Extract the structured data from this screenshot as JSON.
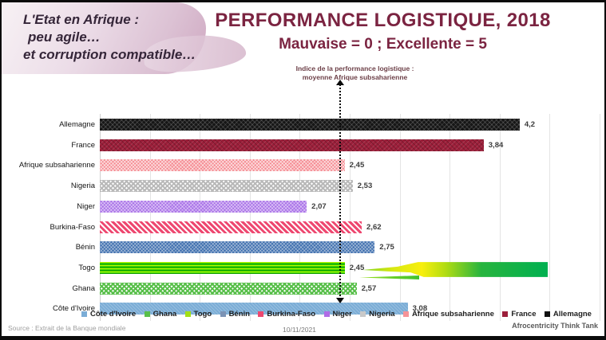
{
  "header": {
    "tagline_lines": [
      "L'Etat en Afrique :",
      "peu agile…",
      "et corruption compatible…"
    ],
    "title": "PERFORMANCE LOGISTIQUE, 2018",
    "subtitle": "Mauvaise = 0 ; Excellente = 5"
  },
  "annotation": {
    "line1": "Indice de la performance logistique :",
    "line2": "moyenne Afrique subsaharienne"
  },
  "colors": {
    "title": "#7b2441",
    "tagline_text": "#352639",
    "brush_pink": "#cfa9c2",
    "highlight_arrow_green": "#00b050",
    "highlight_arrow_yellow": "#f8ef0e",
    "reference_line": "#0a0a0a"
  },
  "chart_data": {
    "type": "bar",
    "orientation": "horizontal",
    "title": "PERFORMANCE LOGISTIQUE, 2018",
    "subtitle": "Mauvaise = 0 ; Excellente = 5",
    "xlabel": "",
    "ylabel": "",
    "xlim": [
      0,
      5
    ],
    "gridline_step": 0.5,
    "grid": true,
    "bars": [
      {
        "label": "Allemagne",
        "value": 4.2,
        "value_label": "4,2",
        "color": "#161616",
        "pattern": "black"
      },
      {
        "label": "France",
        "value": 3.84,
        "value_label": "3,84",
        "color": "#9c1f3a",
        "pattern": "darkred"
      },
      {
        "label": "Afrique subsaharienne",
        "value": 2.45,
        "value_label": "2,45",
        "color": "#f58b92",
        "pattern": "salmon"
      },
      {
        "label": "Nigeria",
        "value": 2.53,
        "value_label": "2,53",
        "color": "#bdbdbd",
        "pattern": "gray"
      },
      {
        "label": "Niger",
        "value": 2.07,
        "value_label": "2,07",
        "color": "#a971e8",
        "pattern": "purple"
      },
      {
        "label": "Burkina-Faso",
        "value": 2.62,
        "value_label": "2,62",
        "color": "#ee4870",
        "pattern": "pinkstripe"
      },
      {
        "label": "Bénin",
        "value": 2.75,
        "value_label": "2,75",
        "color": "#3f6fae",
        "pattern": "blue"
      },
      {
        "label": "Togo",
        "value": 2.45,
        "value_label": "2,45",
        "color": "#2ed300",
        "pattern": "greenh"
      },
      {
        "label": "Ghana",
        "value": 2.57,
        "value_label": "2,57",
        "color": "#58bf4a",
        "pattern": "greenx"
      },
      {
        "label": "Côte d'Ivoire",
        "value": 3.08,
        "value_label": "3,08",
        "color": "#7badd6",
        "pattern": "lightblue"
      }
    ],
    "reference_line": {
      "value": 2.45,
      "label": "Indice de la performance logistique : moyenne Afrique subsaharienne"
    },
    "legend_position": "bottom",
    "legend": [
      {
        "label": "Côte d'Ivoire",
        "color": "#7badd6"
      },
      {
        "label": "Ghana",
        "color": "#58bf4a"
      },
      {
        "label": "Togo",
        "color": "#a2e017"
      },
      {
        "label": "Bénin",
        "color": "#7c93b5"
      },
      {
        "label": "Burkina-Faso",
        "color": "#ee4870"
      },
      {
        "label": "Niger",
        "color": "#b06ce6"
      },
      {
        "label": "Nigeria",
        "color": "#c9c9c9"
      },
      {
        "label": "Afrique subsaharienne",
        "color": "#f59398"
      },
      {
        "label": "France",
        "color": "#9c1f3a"
      },
      {
        "label": "Allemagne",
        "color": "#111111"
      }
    ]
  },
  "footer": {
    "source": "Source : Extrait de la Banque mondiale",
    "date": "10/11/2021",
    "credit": "Afrocentricity Think Tank"
  }
}
